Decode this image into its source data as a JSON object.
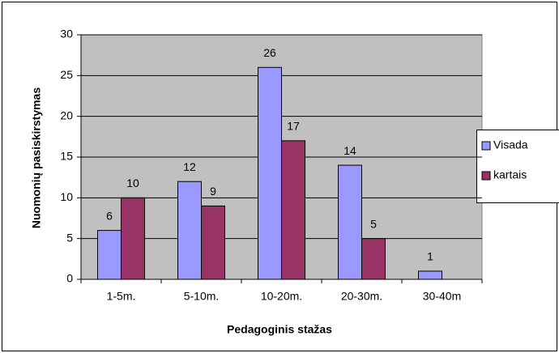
{
  "chart_data": {
    "type": "bar",
    "categories": [
      "1-5m.",
      "5-10m.",
      "10-20m.",
      "20-30m.",
      "30-40m"
    ],
    "series": [
      {
        "name": "Visada",
        "color": "#9999ff",
        "values": [
          6,
          12,
          26,
          14,
          1
        ]
      },
      {
        "name": "kartais",
        "color": "#993366",
        "values": [
          10,
          9,
          17,
          5,
          null
        ]
      }
    ],
    "xlabel": "Pedagoginis stažas",
    "ylabel": "Nuomonių pasiskirstymas",
    "ylim": [
      0,
      30
    ],
    "yticks": [
      0,
      5,
      10,
      15,
      20,
      25,
      30
    ],
    "grid": true,
    "legend": "right"
  }
}
